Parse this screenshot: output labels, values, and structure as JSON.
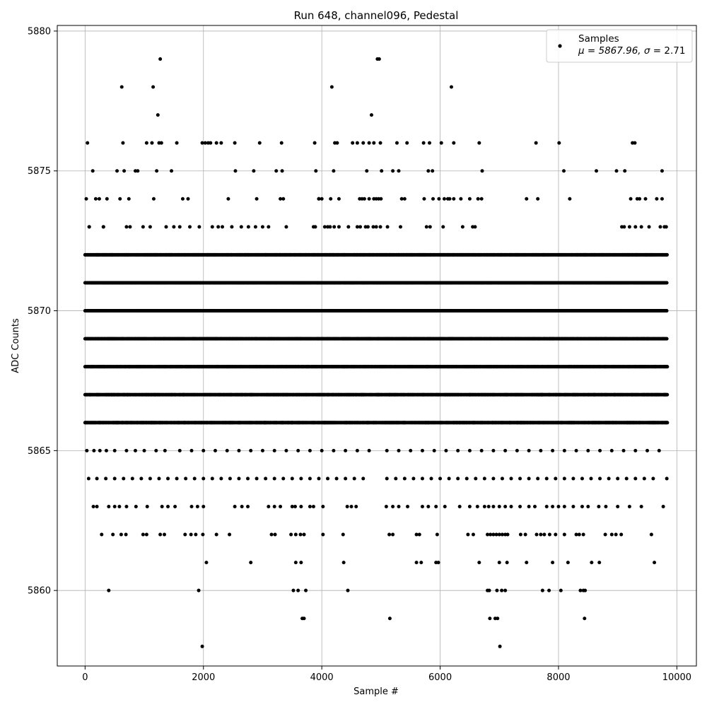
{
  "chart_data": {
    "type": "scatter",
    "title": "Run 648, channel096, Pedestal",
    "xlabel": "Sample #",
    "ylabel": "ADC Counts",
    "xlim": [
      -470,
      10330
    ],
    "ylim": [
      5857.3,
      5880.2
    ],
    "xticks": [
      0,
      2000,
      4000,
      6000,
      8000,
      10000
    ],
    "yticks": [
      5860,
      5865,
      5870,
      5875,
      5880
    ],
    "grid": true,
    "marker_color": "#000000",
    "legend": {
      "placement": "top-right",
      "series_label": "Samples",
      "stats_prefix": "μ = 5867.96, ",
      "stats_sigma_symbol": "σ",
      "stats_suffix": " = 2.71"
    },
    "sample_count": 9840,
    "level_bands": [
      {
        "y": 5866,
        "x_range": [
          0,
          9840
        ]
      },
      {
        "y": 5867,
        "x_range": [
          0,
          9840
        ]
      },
      {
        "y": 5868,
        "x_range": [
          0,
          9840
        ]
      },
      {
        "y": 5869,
        "x_range": [
          0,
          9840
        ]
      },
      {
        "y": 5870,
        "x_range": [
          0,
          9840
        ]
      },
      {
        "y": 5871,
        "x_range": [
          0,
          9840
        ]
      },
      {
        "y": 5872,
        "x_range": [
          0,
          9840
        ]
      }
    ],
    "outliers": [
      {
        "x": 20,
        "y": 5874
      },
      {
        "x": 40,
        "y": 5876
      },
      {
        "x": 70,
        "y": 5873
      },
      {
        "x": 130,
        "y": 5875
      },
      {
        "x": 180,
        "y": 5874
      },
      {
        "x": 240,
        "y": 5874
      },
      {
        "x": 310,
        "y": 5873
      },
      {
        "x": 370,
        "y": 5874
      },
      {
        "x": 540,
        "y": 5875
      },
      {
        "x": 590,
        "y": 5874
      },
      {
        "x": 620,
        "y": 5878
      },
      {
        "x": 640,
        "y": 5876
      },
      {
        "x": 660,
        "y": 5875
      },
      {
        "x": 740,
        "y": 5874
      },
      {
        "x": 850,
        "y": 5875
      },
      {
        "x": 890,
        "y": 5875
      },
      {
        "x": 1040,
        "y": 5876
      },
      {
        "x": 1130,
        "y": 5876
      },
      {
        "x": 1150,
        "y": 5878
      },
      {
        "x": 1160,
        "y": 5874
      },
      {
        "x": 1210,
        "y": 5875
      },
      {
        "x": 1230,
        "y": 5877
      },
      {
        "x": 1250,
        "y": 5876
      },
      {
        "x": 1270,
        "y": 5879
      },
      {
        "x": 1290,
        "y": 5876
      },
      {
        "x": 1460,
        "y": 5875
      },
      {
        "x": 1550,
        "y": 5876
      },
      {
        "x": 1650,
        "y": 5874
      },
      {
        "x": 1740,
        "y": 5874
      },
      {
        "x": 1980,
        "y": 5876
      },
      {
        "x": 2030,
        "y": 5876
      },
      {
        "x": 2080,
        "y": 5876
      },
      {
        "x": 2120,
        "y": 5876
      },
      {
        "x": 2220,
        "y": 5876
      },
      {
        "x": 2300,
        "y": 5876
      },
      {
        "x": 2420,
        "y": 5874
      },
      {
        "x": 2530,
        "y": 5876
      },
      {
        "x": 2540,
        "y": 5875
      },
      {
        "x": 2850,
        "y": 5875
      },
      {
        "x": 2900,
        "y": 5874
      },
      {
        "x": 2950,
        "y": 5876
      },
      {
        "x": 3230,
        "y": 5875
      },
      {
        "x": 3320,
        "y": 5876
      },
      {
        "x": 3330,
        "y": 5875
      },
      {
        "x": 3880,
        "y": 5876
      },
      {
        "x": 3900,
        "y": 5875
      },
      {
        "x": 3950,
        "y": 5874
      },
      {
        "x": 4170,
        "y": 5878
      },
      {
        "x": 4200,
        "y": 5875
      },
      {
        "x": 4220,
        "y": 5876
      },
      {
        "x": 4260,
        "y": 5876
      },
      {
        "x": 4290,
        "y": 5874
      },
      {
        "x": 4520,
        "y": 5876
      },
      {
        "x": 4600,
        "y": 5876
      },
      {
        "x": 4700,
        "y": 5876
      },
      {
        "x": 4760,
        "y": 5875
      },
      {
        "x": 4800,
        "y": 5876
      },
      {
        "x": 4840,
        "y": 5877
      },
      {
        "x": 4880,
        "y": 5876
      },
      {
        "x": 4940,
        "y": 5879
      },
      {
        "x": 4970,
        "y": 5879
      },
      {
        "x": 4990,
        "y": 5876
      },
      {
        "x": 5010,
        "y": 5875
      },
      {
        "x": 5200,
        "y": 5875
      },
      {
        "x": 5270,
        "y": 5876
      },
      {
        "x": 5300,
        "y": 5875
      },
      {
        "x": 5440,
        "y": 5876
      },
      {
        "x": 5720,
        "y": 5876
      },
      {
        "x": 5800,
        "y": 5875
      },
      {
        "x": 5820,
        "y": 5876
      },
      {
        "x": 5870,
        "y": 5875
      },
      {
        "x": 6020,
        "y": 5876
      },
      {
        "x": 6190,
        "y": 5878
      },
      {
        "x": 6230,
        "y": 5876
      },
      {
        "x": 6660,
        "y": 5876
      },
      {
        "x": 6710,
        "y": 5875
      },
      {
        "x": 7460,
        "y": 5874
      },
      {
        "x": 7620,
        "y": 5876
      },
      {
        "x": 7650,
        "y": 5874
      },
      {
        "x": 8010,
        "y": 5876
      },
      {
        "x": 8090,
        "y": 5875
      },
      {
        "x": 8190,
        "y": 5874
      },
      {
        "x": 8640,
        "y": 5875
      },
      {
        "x": 8980,
        "y": 5875
      },
      {
        "x": 9120,
        "y": 5875
      },
      {
        "x": 9250,
        "y": 5876
      },
      {
        "x": 9290,
        "y": 5876
      },
      {
        "x": 9750,
        "y": 5875
      },
      {
        "x": 400,
        "y": 5860
      },
      {
        "x": 1920,
        "y": 5860
      },
      {
        "x": 1980,
        "y": 5858
      },
      {
        "x": 2050,
        "y": 5861
      },
      {
        "x": 2800,
        "y": 5861
      },
      {
        "x": 3520,
        "y": 5860
      },
      {
        "x": 3560,
        "y": 5861
      },
      {
        "x": 3600,
        "y": 5860
      },
      {
        "x": 3650,
        "y": 5861
      },
      {
        "x": 3670,
        "y": 5859
      },
      {
        "x": 3700,
        "y": 5859
      },
      {
        "x": 3730,
        "y": 5860
      },
      {
        "x": 4370,
        "y": 5861
      },
      {
        "x": 4440,
        "y": 5860
      },
      {
        "x": 5150,
        "y": 5859
      },
      {
        "x": 5600,
        "y": 5861
      },
      {
        "x": 5680,
        "y": 5861
      },
      {
        "x": 5930,
        "y": 5861
      },
      {
        "x": 5970,
        "y": 5861
      },
      {
        "x": 6660,
        "y": 5861
      },
      {
        "x": 6800,
        "y": 5860
      },
      {
        "x": 6830,
        "y": 5860
      },
      {
        "x": 6840,
        "y": 5859
      },
      {
        "x": 6930,
        "y": 5859
      },
      {
        "x": 6960,
        "y": 5860
      },
      {
        "x": 6970,
        "y": 5859
      },
      {
        "x": 7010,
        "y": 5858
      },
      {
        "x": 7040,
        "y": 5860
      },
      {
        "x": 7100,
        "y": 5860
      },
      {
        "x": 7130,
        "y": 5861
      },
      {
        "x": 7000,
        "y": 5861
      },
      {
        "x": 7460,
        "y": 5861
      },
      {
        "x": 7730,
        "y": 5860
      },
      {
        "x": 7840,
        "y": 5860
      },
      {
        "x": 7900,
        "y": 5861
      },
      {
        "x": 8040,
        "y": 5860
      },
      {
        "x": 8160,
        "y": 5861
      },
      {
        "x": 8370,
        "y": 5860
      },
      {
        "x": 8420,
        "y": 5860
      },
      {
        "x": 8440,
        "y": 5859
      },
      {
        "x": 8450,
        "y": 5860
      },
      {
        "x": 8560,
        "y": 5861
      },
      {
        "x": 8690,
        "y": 5861
      },
      {
        "x": 9620,
        "y": 5861
      }
    ],
    "sparse_level_clusters": [
      {
        "y": 5873,
        "x": [
          70,
          310,
          700,
          760,
          980,
          1100,
          1370,
          1500,
          1600,
          1770,
          1930,
          2150,
          2250,
          2320,
          2480,
          2640,
          2760,
          2880,
          3000,
          3100,
          3400,
          3860,
          3890,
          4050,
          4100,
          4140,
          4210,
          4290,
          4450,
          4600,
          4650,
          4740,
          4780,
          4870,
          4920,
          4990,
          5110,
          5330,
          5770,
          5830,
          6050,
          6380,
          6550,
          6590,
          9070,
          9110,
          9200,
          9300,
          9400,
          9530,
          9720,
          9790,
          9820
        ]
      },
      {
        "y": 5874,
        "x": [
          3300,
          3350,
          3950,
          4000,
          4150,
          4640,
          4680,
          4720,
          4800,
          4880,
          4920,
          4960,
          5000,
          5350,
          5400,
          5730,
          5880,
          5980,
          6070,
          6130,
          6160,
          6230,
          6350,
          6500,
          6640,
          6700,
          9220,
          9330,
          9370,
          9470,
          9660,
          9750
        ]
      },
      {
        "y": 5865,
        "x": [
          30,
          150,
          250,
          360,
          500,
          700,
          850,
          1000,
          1200,
          1350,
          1600,
          1800,
          2000,
          2200,
          2400,
          2600,
          2800,
          3000,
          3200,
          3400,
          3600,
          3800,
          4000,
          4200,
          4400,
          4600,
          4800,
          5100,
          5300,
          5500,
          5700,
          5900,
          6100,
          6300,
          6500,
          6700,
          6900,
          7100,
          7300,
          7500,
          7700,
          7900,
          8100,
          8300,
          8500,
          8700,
          8900,
          9100,
          9300,
          9500,
          9700
        ]
      },
      {
        "y": 5864,
        "x": [
          60,
          200,
          350,
          500,
          650,
          800,
          950,
          1100,
          1250,
          1400,
          1550,
          1700,
          1850,
          2000,
          2150,
          2300,
          2450,
          2600,
          2750,
          2900,
          3050,
          3200,
          3350,
          3500,
          3650,
          3800,
          3950,
          4100,
          4250,
          4400,
          4550,
          4700,
          5100,
          5250,
          5400,
          5550,
          5700,
          5850,
          6000,
          6150,
          6300,
          6450,
          6600,
          6750,
          6900,
          7050,
          7200,
          7350,
          7500,
          7650,
          7800,
          7950,
          8100,
          8250,
          8400,
          8550,
          8700,
          8850,
          9000,
          9150,
          9300,
          9450,
          9600,
          9830
        ]
      },
      {
        "y": 5863,
        "x": [
          140,
          200,
          400,
          500,
          580,
          700,
          860,
          1050,
          1300,
          1400,
          1520,
          1800,
          1900,
          2000,
          2530,
          2650,
          2750,
          3100,
          3200,
          3300,
          3500,
          3550,
          3650,
          3800,
          3860,
          4020,
          4430,
          4500,
          4580,
          5090,
          5200,
          5300,
          5450,
          5700,
          5800,
          5930,
          6080,
          6330,
          6500,
          6630,
          6750,
          6820,
          6900,
          7000,
          7100,
          7200,
          7350,
          7500,
          7600,
          7800,
          7900,
          8000,
          8100,
          8250,
          8400,
          8500,
          8680,
          8800,
          9000,
          9200,
          9400,
          9770
        ]
      },
      {
        "y": 5862,
        "x": [
          280,
          470,
          610,
          690,
          980,
          1040,
          1270,
          1340,
          1690,
          1790,
          1870,
          1990,
          2220,
          2440,
          3150,
          3210,
          3480,
          3560,
          3640,
          3700,
          4020,
          4360,
          5140,
          5200,
          5600,
          5650,
          5950,
          6470,
          6560,
          6800,
          6850,
          6900,
          6950,
          7000,
          7050,
          7100,
          7140,
          7360,
          7440,
          7630,
          7700,
          7760,
          7850,
          7950,
          8100,
          8300,
          8350,
          8420,
          8790,
          8900,
          8970,
          9060,
          9570
        ]
      }
    ]
  }
}
